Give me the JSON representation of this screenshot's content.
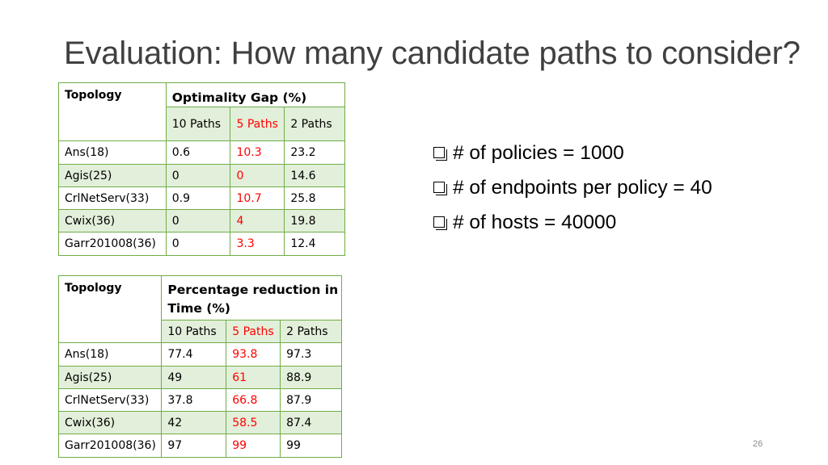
{
  "slide": {
    "title": "Evaluation: How many candidate paths to consider?",
    "page_number": "26"
  },
  "table1": {
    "topology_header": "Topology",
    "metric_header": "Optimality Gap (%)",
    "sub_headers": [
      "10 Paths",
      "5 Paths",
      "2 Paths"
    ],
    "rows": [
      [
        "Ans(18)",
        "0.6",
        "10.3",
        "23.2"
      ],
      [
        "Agis(25)",
        "0",
        "0",
        "14.6"
      ],
      [
        "CrlNetServ(33)",
        "0.9",
        "10.7",
        "25.8"
      ],
      [
        "Cwix(36)",
        "0",
        "4",
        "19.8"
      ],
      [
        "Garr201008(36)",
        "0",
        "3.3",
        "12.4"
      ]
    ]
  },
  "table2": {
    "topology_header": "Topology",
    "metric_header_line1": "Percentage reduction in",
    "metric_header_line2": "Time (%)",
    "sub_headers": [
      "10 Paths",
      "5 Paths",
      "2 Paths"
    ],
    "rows": [
      [
        "Ans(18)",
        "77.4",
        "93.8",
        "97.3"
      ],
      [
        "Agis(25)",
        "49",
        "61",
        "88.9"
      ],
      [
        "CrlNetServ(33)",
        "37.8",
        "66.8",
        "87.9"
      ],
      [
        "Cwix(36)",
        "42",
        "58.5",
        "87.4"
      ],
      [
        "Garr201008(36)",
        "97",
        "99",
        "99"
      ]
    ]
  },
  "bullets": [
    "# of policies = 1000",
    "# of endpoints per policy = 40",
    "# of hosts = 40000"
  ],
  "colors": {
    "border": "#70ad47",
    "band": "#e2efda",
    "highlight": "#ff0000"
  }
}
